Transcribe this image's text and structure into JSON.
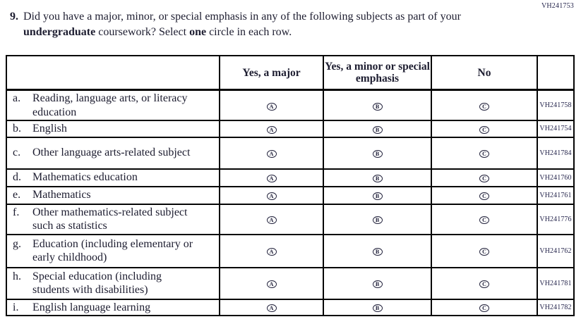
{
  "page_code": "VH241753",
  "question": {
    "number": "9.",
    "part1": "Did you have a major, minor, or special emphasis in any of the following subjects as part of your ",
    "bold1": "undergraduate",
    "part2": " coursework? Select ",
    "bold2": "one",
    "part3": " circle in each row."
  },
  "table": {
    "headers": {
      "major": "Yes, a major",
      "minor": "Yes, a minor or special emphasis",
      "no": "No"
    },
    "bubbles": [
      "A",
      "B",
      "C"
    ],
    "rows": [
      {
        "letter": "a.",
        "subject": "Reading, language arts, or literacy education",
        "code": "VH241758"
      },
      {
        "letter": "b.",
        "subject": "English",
        "code": "VH241754"
      },
      {
        "letter": "c.",
        "subject": "Other language arts-related subject",
        "code": "VH241784"
      },
      {
        "letter": "d.",
        "subject": "Mathematics education",
        "code": "VH241760"
      },
      {
        "letter": "e.",
        "subject": "Mathematics",
        "code": "VH241761"
      },
      {
        "letter": "f.",
        "subject": "Other mathematics-related subject such as statistics",
        "code": "VH241776"
      },
      {
        "letter": "g.",
        "subject": "Education (including elementary or early childhood)",
        "code": "VH241762"
      },
      {
        "letter": "h.",
        "subject": "Special education (including students with disabilities)",
        "code": "VH241781"
      },
      {
        "letter": "i.",
        "subject": "English language learning",
        "code": "VH241782"
      }
    ]
  }
}
